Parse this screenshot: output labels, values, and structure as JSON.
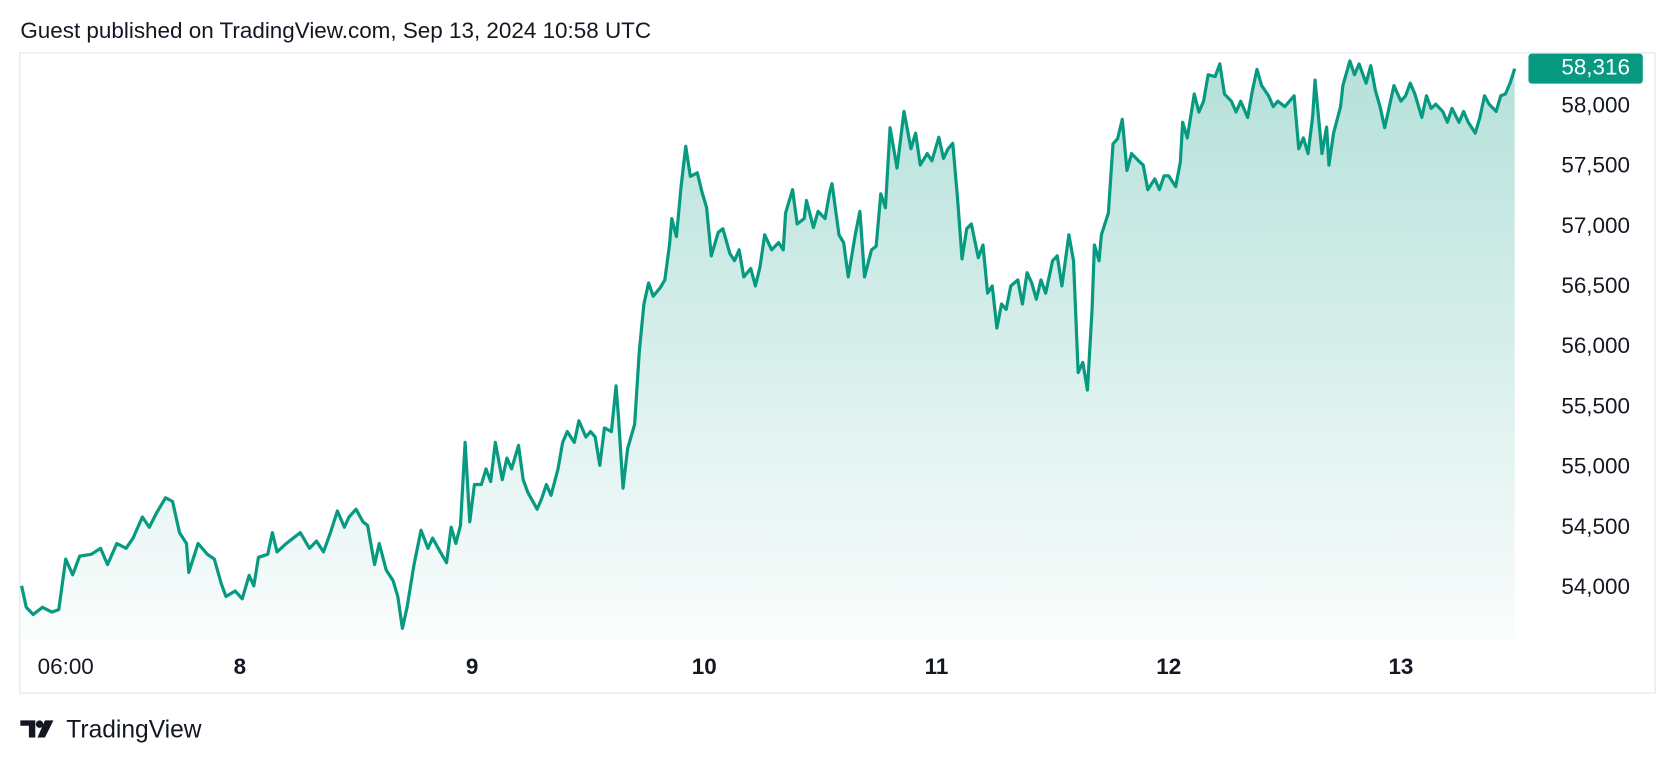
{
  "header": "Guest published on TradingView.com, Sep 13, 2024 10:58 UTC",
  "footer": "TradingView",
  "chart_data": {
    "type": "area",
    "grid": false,
    "x": [
      7.06,
      7.08,
      7.11,
      7.15,
      7.19,
      7.22,
      7.25,
      7.28,
      7.31,
      7.36,
      7.4,
      7.43,
      7.47,
      7.51,
      7.54,
      7.58,
      7.61,
      7.64,
      7.68,
      7.71,
      7.74,
      7.77,
      7.78,
      7.82,
      7.86,
      7.89,
      7.92,
      7.94,
      7.98,
      8.01,
      8.04,
      8.06,
      8.08,
      8.12,
      8.14,
      8.16,
      8.2,
      8.23,
      8.26,
      8.3,
      8.33,
      8.36,
      8.39,
      8.42,
      8.45,
      8.47,
      8.5,
      8.53,
      8.55,
      8.58,
      8.6,
      8.63,
      8.66,
      8.68,
      8.7,
      8.72,
      8.75,
      8.78,
      8.81,
      8.83,
      8.86,
      8.89,
      8.91,
      8.93,
      8.95,
      8.97,
      8.99,
      9.01,
      9.04,
      9.06,
      9.08,
      9.1,
      9.13,
      9.15,
      9.17,
      9.2,
      9.22,
      9.24,
      9.28,
      9.3,
      9.32,
      9.34,
      9.37,
      9.39,
      9.41,
      9.44,
      9.46,
      9.49,
      9.51,
      9.53,
      9.55,
      9.57,
      9.6,
      9.62,
      9.63,
      9.65,
      9.67,
      9.7,
      9.72,
      9.74,
      9.76,
      9.78,
      9.81,
      9.83,
      9.85,
      9.86,
      9.88,
      9.9,
      9.92,
      9.94,
      9.97,
      9.99,
      10.01,
      10.03,
      10.06,
      10.08,
      10.11,
      10.13,
      10.15,
      10.17,
      10.2,
      10.22,
      10.24,
      10.26,
      10.29,
      10.32,
      10.34,
      10.35,
      10.38,
      10.4,
      10.43,
      10.44,
      10.47,
      10.49,
      10.52,
      10.54,
      10.55,
      10.58,
      10.6,
      10.62,
      10.65,
      10.67,
      10.69,
      10.72,
      10.74,
      10.76,
      10.78,
      10.8,
      10.83,
      10.86,
      10.89,
      10.91,
      10.93,
      10.96,
      10.98,
      11.01,
      11.03,
      11.05,
      11.07,
      11.09,
      11.11,
      11.13,
      11.15,
      11.18,
      11.2,
      11.22,
      11.24,
      11.26,
      11.28,
      11.3,
      11.32,
      11.35,
      11.37,
      11.39,
      11.41,
      11.43,
      11.45,
      11.47,
      11.5,
      11.52,
      11.54,
      11.57,
      11.59,
      11.61,
      11.63,
      11.65,
      11.67,
      11.68,
      11.7,
      11.71,
      11.74,
      11.76,
      11.78,
      11.8,
      11.82,
      11.84,
      11.87,
      11.89,
      11.91,
      11.94,
      11.96,
      11.98,
      12.0,
      12.03,
      12.05,
      12.06,
      12.08,
      12.11,
      12.13,
      12.15,
      12.17,
      12.2,
      12.22,
      12.24,
      12.27,
      12.29,
      12.31,
      12.34,
      12.36,
      12.38,
      12.4,
      12.43,
      12.45,
      12.47,
      12.5,
      12.52,
      12.54,
      12.56,
      12.58,
      12.6,
      12.62,
      12.63,
      12.66,
      12.68,
      12.69,
      12.71,
      12.74,
      12.75,
      12.78,
      12.8,
      12.82,
      12.85,
      12.87,
      12.89,
      12.91,
      12.93,
      12.95,
      12.97,
      13.0,
      13.02,
      13.04,
      13.06,
      13.09,
      13.11,
      13.13,
      13.15,
      13.18,
      13.2,
      13.22,
      13.25,
      13.27,
      13.29,
      13.32,
      13.34,
      13.36,
      13.38,
      13.41,
      13.43,
      13.45,
      13.47,
      13.49
    ],
    "series": [
      {
        "color": "#089981",
        "values": [
          54018,
          53840,
          53780,
          53840,
          53800,
          53820,
          54240,
          54110,
          54265,
          54280,
          54330,
          54195,
          54370,
          54330,
          54415,
          54590,
          54505,
          54620,
          54750,
          54720,
          54460,
          54370,
          54130,
          54370,
          54280,
          54240,
          54035,
          53930,
          53975,
          53910,
          54105,
          54018,
          54255,
          54280,
          54460,
          54300,
          54370,
          54415,
          54460,
          54330,
          54390,
          54300,
          54460,
          54640,
          54505,
          54590,
          54655,
          54550,
          54520,
          54195,
          54370,
          54150,
          54060,
          53930,
          53665,
          53840,
          54195,
          54480,
          54330,
          54415,
          54310,
          54210,
          54505,
          54370,
          54520,
          55210,
          54550,
          54860,
          54860,
          54990,
          54885,
          55210,
          54900,
          55080,
          54990,
          55185,
          54900,
          54795,
          54655,
          54745,
          54860,
          54770,
          54990,
          55210,
          55300,
          55210,
          55390,
          55255,
          55300,
          55255,
          55020,
          55330,
          55300,
          55680,
          55430,
          54830,
          55160,
          55360,
          55965,
          56360,
          56535,
          56425,
          56495,
          56560,
          56850,
          57070,
          56920,
          57335,
          57670,
          57420,
          57450,
          57290,
          57160,
          56760,
          56955,
          56985,
          56780,
          56720,
          56810,
          56585,
          56655,
          56510,
          56670,
          56935,
          56810,
          56870,
          56810,
          57115,
          57310,
          57025,
          57070,
          57220,
          56995,
          57130,
          57070,
          57290,
          57360,
          56935,
          56870,
          56585,
          56935,
          57130,
          56585,
          56810,
          56840,
          57275,
          57160,
          57825,
          57490,
          57960,
          57650,
          57780,
          57515,
          57610,
          57550,
          57745,
          57570,
          57650,
          57695,
          57250,
          56735,
          56985,
          57025,
          56745,
          56850,
          56450,
          56510,
          56160,
          56360,
          56315,
          56510,
          56560,
          56360,
          56620,
          56535,
          56400,
          56560,
          56450,
          56720,
          56760,
          56510,
          56935,
          56720,
          55790,
          55875,
          55645,
          56320,
          56850,
          56720,
          56935,
          57115,
          57690,
          57735,
          57895,
          57470,
          57610,
          57550,
          57515,
          57310,
          57400,
          57310,
          57425,
          57425,
          57335,
          57540,
          57870,
          57740,
          58105,
          57955,
          58045,
          58265,
          58250,
          58355,
          58105,
          58045,
          57955,
          58045,
          57910,
          58130,
          58310,
          58175,
          58090,
          58000,
          58045,
          58000,
          58045,
          58090,
          57650,
          57740,
          57610,
          57920,
          58220,
          57610,
          57830,
          57515,
          57780,
          58000,
          58175,
          58380,
          58265,
          58355,
          58195,
          58340,
          58135,
          58000,
          57825,
          58000,
          58175,
          58045,
          58090,
          58195,
          58105,
          57910,
          58090,
          57985,
          58020,
          57960,
          57870,
          57985,
          57870,
          57960,
          57870,
          57780,
          57910,
          58090,
          58020,
          57960,
          58090,
          58105,
          58195,
          58316
        ]
      }
    ],
    "xlim": [
      7.05,
      13.54
    ],
    "xticks": [
      {
        "value": 7.25,
        "label": "06:00"
      },
      8,
      9,
      10,
      11,
      12,
      13
    ],
    "ylim": [
      53575,
      58442
    ],
    "yticks": [
      {
        "value": 54000,
        "label": "54,000"
      },
      {
        "value": 54500,
        "label": "54,500"
      },
      {
        "value": 55000,
        "label": "55,000"
      },
      {
        "value": 55500,
        "label": "55,500"
      },
      {
        "value": 56000,
        "label": "56,000"
      },
      {
        "value": 56500,
        "label": "56,500"
      },
      {
        "value": 57000,
        "label": "57,000"
      },
      {
        "value": 57500,
        "label": "57,500"
      },
      {
        "value": 58000,
        "label": "58,000"
      }
    ],
    "last_price": {
      "value": 58316,
      "label": "58,316"
    }
  }
}
